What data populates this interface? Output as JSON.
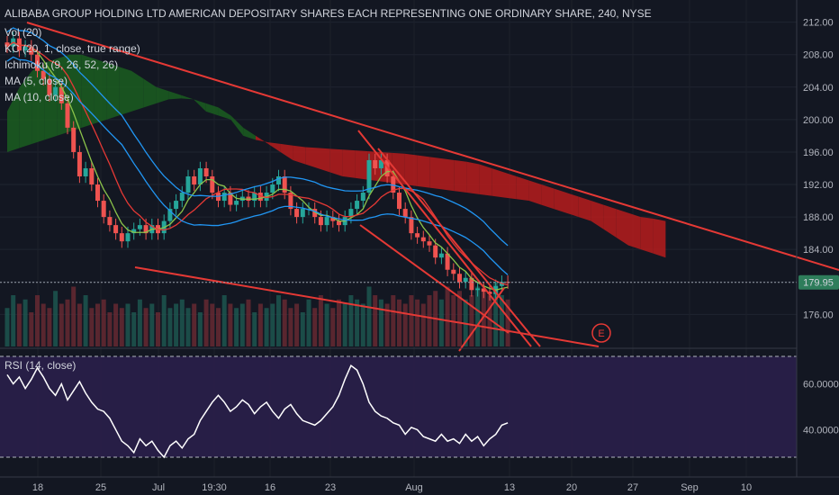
{
  "header": {
    "title": "ALIBABA GROUP HOLDING LTD AMERICAN DEPOSITARY SHARES EACH REPRESENTING ONE ORDINARY SHARE, 240, NYSE"
  },
  "indicators": [
    "Vol (20)",
    "KC (20, 1, close, true range)",
    "Ichimoku (9, 26, 52, 26)",
    "MA (5, close)",
    "MA (10, close)"
  ],
  "rsi_label": "RSI (14, close)",
  "last_price_label": "179.95",
  "event_marker": "E",
  "colors": {
    "background": "#131722",
    "up": "#26a69a",
    "down": "#ef5350",
    "trendline": "#e53935",
    "cloud_bull": "#1b5e20",
    "cloud_bear": "#b71c1c",
    "rsi_band": "#2a1f4a",
    "rsi_line": "#ffffff",
    "price_badge": "#2e7d5b"
  },
  "chart_data": [
    {
      "type": "candlestick",
      "title": "ALIBABA GROUP HOLDING LTD AMERICAN DEPOSITARY SHARES EACH REPRESENTING ONE ORDINARY SHARE, 240, NYSE",
      "x_ticks": [
        "18",
        "25",
        "Jul",
        "19:30",
        "16",
        "23",
        "Aug",
        "13",
        "20",
        "27",
        "Sep",
        "10"
      ],
      "y_ticks": [
        "212.00",
        "208.00",
        "204.00",
        "200.00",
        "196.00",
        "192.00",
        "188.00",
        "184.00",
        "180.00",
        "176.00"
      ],
      "ylim": [
        172.6,
        213.4
      ],
      "last_price": 179.95,
      "close": [
        209,
        210,
        208.5,
        209,
        208,
        206,
        205,
        203,
        204,
        202,
        199,
        196,
        193,
        194,
        192,
        190,
        188,
        187,
        186,
        185,
        186,
        186.5,
        187,
        186,
        187,
        186,
        187.5,
        189,
        190,
        191,
        193,
        192,
        194,
        193,
        191,
        190,
        191,
        189.5,
        190,
        190.5,
        190,
        191,
        190,
        191,
        192,
        193,
        191,
        189,
        188,
        189,
        189,
        188,
        187,
        188,
        187.5,
        187,
        188,
        189,
        190,
        191,
        195,
        194,
        195,
        193,
        191,
        189,
        188,
        186,
        185.5,
        185,
        184.5,
        183,
        183.5,
        181.5,
        181,
        180,
        180.5,
        179,
        179.2,
        178.8,
        178.5,
        179.5,
        180,
        179.95
      ],
      "volume": [
        0.45,
        0.6,
        0.5,
        0.55,
        0.4,
        0.6,
        0.5,
        0.45,
        0.65,
        0.5,
        0.55,
        0.7,
        0.5,
        0.6,
        0.45,
        0.5,
        0.55,
        0.4,
        0.5,
        0.45,
        0.5,
        0.4,
        0.55,
        0.45,
        0.5,
        0.4,
        0.6,
        0.45,
        0.5,
        0.55,
        0.45,
        0.5,
        0.4,
        0.55,
        0.5,
        0.45,
        0.6,
        0.5,
        0.45,
        0.5,
        0.55,
        0.4,
        0.5,
        0.45,
        0.5,
        0.6,
        0.55,
        0.45,
        0.5,
        0.4,
        0.55,
        0.45,
        0.6,
        0.5,
        0.45,
        0.55,
        0.5,
        0.6,
        0.55,
        0.5,
        0.7,
        0.6,
        0.55,
        0.5,
        0.6,
        0.55,
        0.5,
        0.6,
        0.55,
        0.5,
        0.6,
        0.65,
        0.55,
        0.7,
        0.6,
        0.65,
        0.55,
        0.6,
        0.7,
        0.65,
        0.6,
        0.75,
        0.6,
        0.55
      ],
      "cloud_upper": [
        201,
        204,
        206,
        207,
        207.5,
        208,
        208,
        207.5,
        207,
        206.5,
        206,
        205,
        204,
        203.5,
        203,
        202.5,
        201,
        200.5,
        200,
        198,
        197.5,
        197.2,
        197,
        196.8,
        196.6,
        196.5,
        196.4,
        196.3,
        196.2,
        196.1,
        196.0,
        195.9,
        195.8,
        195.6,
        195.4,
        195.2,
        195,
        194.8,
        194.5,
        194,
        193.5,
        193,
        192.5,
        192,
        191.5,
        191,
        190.5,
        190,
        189.5,
        189,
        188.5,
        188,
        187.8,
        187.5
      ],
      "cloud_lower": [
        196,
        196.5,
        197,
        197.5,
        198,
        198.5,
        199,
        199.5,
        200,
        200.5,
        201,
        201.5,
        202,
        202.5,
        202.6,
        202.5,
        202,
        201.5,
        200.5,
        199,
        198,
        197,
        196,
        195,
        194.5,
        194,
        193.5,
        193,
        192.8,
        192.6,
        192.4,
        192.2,
        192,
        191.8,
        191.6,
        191.4,
        191.2,
        191,
        190.8,
        190.6,
        190.4,
        190.2,
        190,
        189.5,
        189,
        188.5,
        188,
        187.5,
        186.5,
        185.5,
        184.5,
        184,
        183.5,
        183
      ],
      "rsi": {
        "title": "RSI (14, close)",
        "y_ticks": [
          "60.0000",
          "40.0000"
        ],
        "ylim": [
          23,
          77
        ],
        "upper_band": 70,
        "lower_band": 30,
        "values": [
          64,
          60,
          63,
          58,
          62,
          67,
          63,
          58,
          55,
          60,
          53,
          57,
          61,
          56,
          52,
          49,
          48,
          45,
          40,
          35,
          33,
          30,
          36,
          33,
          35,
          31,
          28,
          33,
          35,
          32,
          36,
          38,
          44,
          48,
          52,
          55,
          52,
          48,
          50,
          53,
          51,
          47,
          50,
          52,
          48,
          45,
          49,
          51,
          47,
          44,
          43,
          42,
          44,
          47,
          50,
          55,
          62,
          68,
          66,
          60,
          52,
          48,
          46,
          45,
          43,
          42,
          38,
          41,
          40,
          37,
          36,
          35,
          38,
          35,
          36,
          34,
          38,
          35,
          37,
          33,
          36,
          38,
          42,
          43
        ]
      }
    }
  ]
}
